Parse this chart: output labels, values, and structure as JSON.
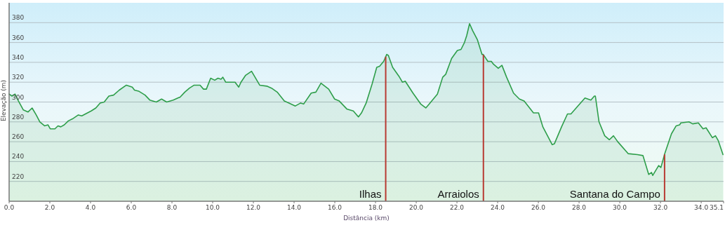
{
  "chart_data": {
    "type": "area",
    "xlabel": "Distância  (km)",
    "ylabel": "Elevação (m)",
    "xlim": [
      0,
      35.1
    ],
    "ylim": [
      200,
      400
    ],
    "xticks": [
      {
        "value": 0,
        "label": "0.0"
      },
      {
        "value": 2,
        "label": "2.0"
      },
      {
        "value": 4,
        "label": "4.0"
      },
      {
        "value": 6,
        "label": "6.0"
      },
      {
        "value": 8,
        "label": "8.0"
      },
      {
        "value": 10,
        "label": "10.0"
      },
      {
        "value": 12,
        "label": "12.0"
      },
      {
        "value": 14,
        "label": "14.0"
      },
      {
        "value": 16,
        "label": "16.0"
      },
      {
        "value": 18,
        "label": "18.0"
      },
      {
        "value": 20,
        "label": "20.0"
      },
      {
        "value": 22,
        "label": "22.0"
      },
      {
        "value": 24,
        "label": "24.0"
      },
      {
        "value": 26,
        "label": "26.0"
      },
      {
        "value": 28,
        "label": "28.0"
      },
      {
        "value": 30,
        "label": "30.0"
      },
      {
        "value": 32,
        "label": "32.0"
      },
      {
        "value": 34,
        "label": "34.0"
      },
      35.1
    ],
    "yticks": [
      220,
      240,
      260,
      280,
      300,
      320,
      340,
      360,
      380
    ],
    "grid": "y",
    "series": [
      {
        "color": "#2e9e4a",
        "x": [
          0,
          0.14,
          0.29,
          0.46,
          0.7,
          0.93,
          1.13,
          1.33,
          1.51,
          1.74,
          1.91,
          2.02,
          2.25,
          2.4,
          2.54,
          2.71,
          2.91,
          3.11,
          3.4,
          3.57,
          3.75,
          4.03,
          4.26,
          4.47,
          4.67,
          4.9,
          5.13,
          5.41,
          5.76,
          6.05,
          6.16,
          6.36,
          6.68,
          6.91,
          7.23,
          7.49,
          7.74,
          8.06,
          8.29,
          8.4,
          8.63,
          8.86,
          9.09,
          9.38,
          9.55,
          9.69,
          9.9,
          10.1,
          10.26,
          10.41,
          10.5,
          10.64,
          11.1,
          11.28,
          11.39,
          11.62,
          11.91,
          12.31,
          12.66,
          12.89,
          13.17,
          13.52,
          13.75,
          14.06,
          14.32,
          14.47,
          14.84,
          15.07,
          15.32,
          15.7,
          15.99,
          16.22,
          16.59,
          16.91,
          17.16,
          17.31,
          17.54,
          17.83,
          18.06,
          18.2,
          18.4,
          18.55,
          18.63,
          18.84,
          19.15,
          19.32,
          19.46,
          19.84,
          20.22,
          20.47,
          20.64,
          21.04,
          21.3,
          21.45,
          21.74,
          22.02,
          22.2,
          22.37,
          22.48,
          22.62,
          22.77,
          23,
          23.23,
          23.29,
          23.52,
          23.69,
          23.8,
          24.03,
          24.21,
          24.44,
          24.78,
          25.07,
          25.3,
          25.76,
          26.01,
          26.22,
          26.45,
          26.68,
          26.79,
          27.14,
          27.43,
          27.6,
          27.94,
          28.29,
          28.58,
          28.75,
          28.8,
          28.98,
          29.26,
          29.49,
          29.69,
          29.9,
          30.41,
          30.87,
          31.14,
          31.42,
          31.56,
          31.62,
          31.91,
          32.02,
          32.21,
          32.54,
          32.77,
          32.94,
          33,
          33.4,
          33.58,
          33.86,
          34.09,
          34.24,
          34.55,
          34.7,
          34.84,
          35.07
        ],
        "values": [
          308,
          306,
          308,
          301,
          292,
          290,
          294,
          287,
          280,
          276,
          277,
          273,
          273,
          276,
          275,
          277,
          281,
          283,
          287,
          286,
          288,
          291,
          294,
          299,
          300,
          306,
          307,
          312,
          317,
          315,
          312,
          311,
          307,
          302,
          300,
          303,
          300,
          302,
          304,
          305,
          310,
          314,
          317,
          317,
          313,
          313,
          324,
          322,
          324,
          323,
          325,
          320,
          320,
          315,
          320,
          327,
          331,
          317,
          316,
          314,
          310,
          301,
          299,
          296,
          299,
          298,
          309,
          310,
          319,
          313,
          303,
          301,
          293,
          291,
          285,
          289,
          299,
          318,
          335,
          336,
          341,
          348,
          347,
          335,
          326,
          320,
          321,
          309,
          298,
          294,
          298,
          308,
          325,
          328,
          344,
          352,
          353,
          360,
          367,
          379,
          372,
          363,
          348,
          348,
          341,
          341,
          338,
          334,
          337,
          325,
          309,
          303,
          301,
          289,
          289,
          275,
          266,
          257,
          258,
          275,
          288,
          288,
          296,
          304,
          302,
          306,
          306,
          280,
          266,
          262,
          266,
          260,
          248,
          247,
          246,
          227,
          229,
          226,
          236,
          234,
          248,
          268,
          276,
          277,
          279,
          280,
          278,
          279,
          273,
          274,
          264,
          266,
          261,
          247
        ]
      }
    ],
    "ref_lines": [
      {
        "axis": "x",
        "value": 18.5,
        "label": "Ilhas",
        "color": "#b83a32"
      },
      {
        "axis": "x",
        "value": 23.3,
        "label": "Arraiolos",
        "color": "#b83a32"
      },
      {
        "axis": "x",
        "value": 32.2,
        "label": "Santana do Campo",
        "color": "#b83a32"
      }
    ]
  }
}
